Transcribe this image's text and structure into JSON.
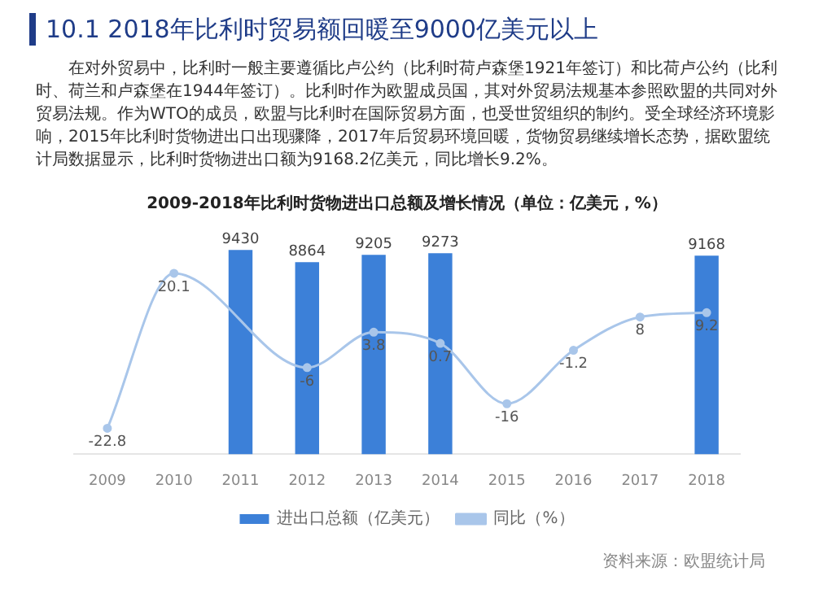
{
  "chart_data": {
    "type": "bar",
    "title": "2009-2018年比利时货物进出口总额及增长情况（单位：亿美元，%）",
    "annotations": [
      "10.1 2018年比利时贸易额回暖至9000亿美元以上",
      "在对外贸易中，比利时一般主要遵循比卢公约（比利时荷卢森堡1921年签订）和比荷卢公约（比利时、荷兰和卢森堡在1944年签订）。比利时作为欧盟成员国，其对外贸易法规基本参照欧盟的共同对外贸易法规。作为WTO的成员，欧盟与比利时在国际贸易方面，也受世贸组织的制约。受全球经济环境影响，2015年比利时货物进出口出现骤降，2017年后贸易环境回暖，货物贸易继续增长态势，据欧盟统计局数据显示，比利时货物进出口额为9168.2亿美元，同比增长9.2%。",
      "资料来源：欧盟统计局"
    ],
    "categories": [
      "2009",
      "2010",
      "2011",
      "2012",
      "2013",
      "2014",
      "2015",
      "2016",
      "2017",
      "2018"
    ],
    "series": [
      {
        "name": "进出口总额（亿美元）",
        "color": "#3c80d8",
        "values": [
          null,
          null,
          9430,
          8864,
          9205,
          9273,
          null,
          null,
          null,
          9168
        ]
      },
      {
        "name": "同比（%）",
        "type": "line",
        "axis": "y2",
        "color": "#a9c6ea",
        "values": [
          -22.8,
          20.1,
          null,
          -6,
          3.8,
          0.7,
          -16,
          -1.2,
          8,
          9.2
        ]
      }
    ],
    "data_labels": true,
    "legend": "bottom",
    "grid": false,
    "tick_labels": "x",
    "marker": "circle"
  }
}
